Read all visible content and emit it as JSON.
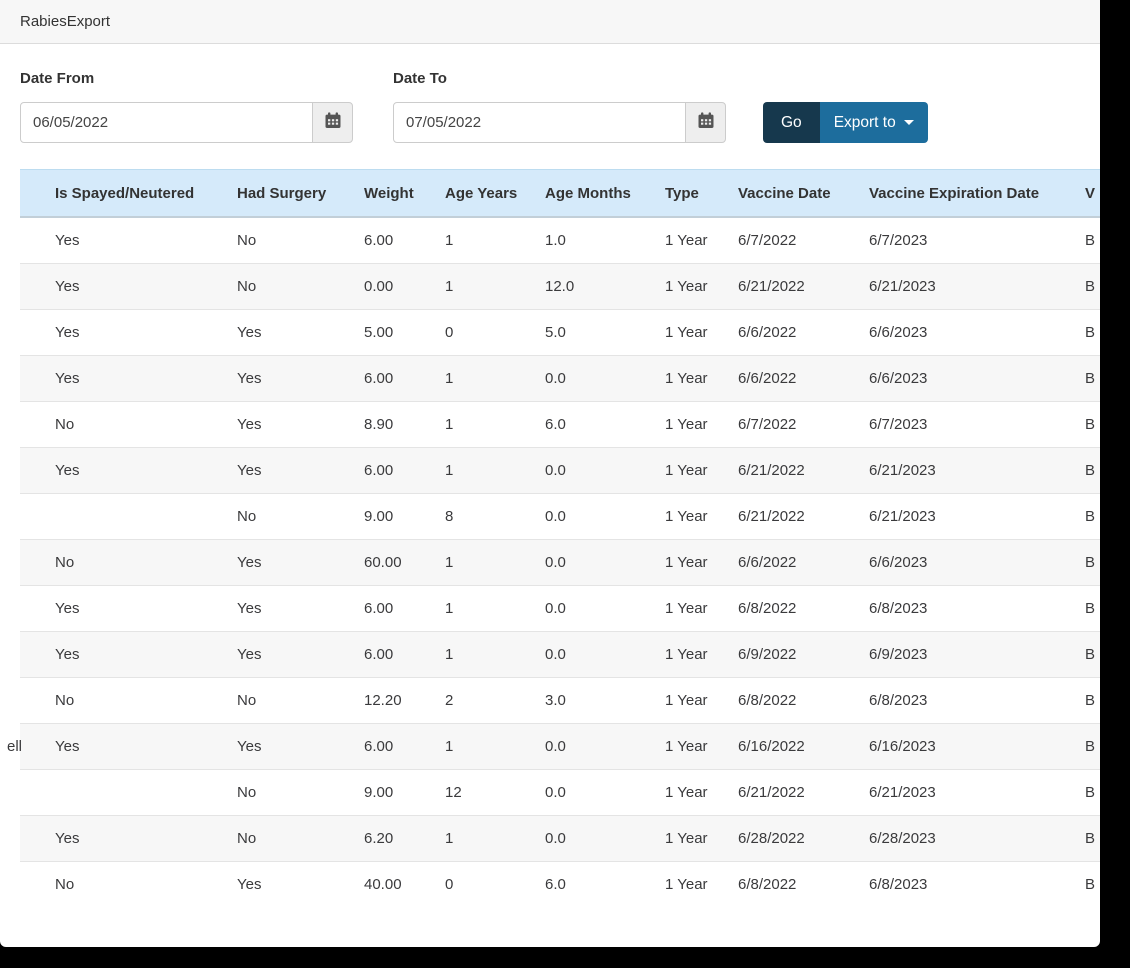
{
  "window": {
    "title": "RabiesExport"
  },
  "filters": {
    "date_from": {
      "label": "Date From",
      "value": "06/05/2022"
    },
    "date_to": {
      "label": "Date To",
      "value": "07/05/2022"
    },
    "go_label": "Go",
    "export_label": "Export to"
  },
  "icons": {
    "calendar": "calendar-icon",
    "caret": "caret-down-icon"
  },
  "table": {
    "columns": [
      "",
      "Is Spayed/Neutered",
      "Had Surgery",
      "Weight",
      "Age Years",
      "Age Months",
      "Type",
      "Vaccine Date",
      "Vaccine Expiration Date",
      "V"
    ],
    "rows": [
      [
        "",
        "Yes",
        "No",
        "6.00",
        "1",
        "1.0",
        "1 Year",
        "6/7/2022",
        "6/7/2023",
        "B"
      ],
      [
        "",
        "Yes",
        "No",
        "0.00",
        "1",
        "12.0",
        "1 Year",
        "6/21/2022",
        "6/21/2023",
        "B"
      ],
      [
        "",
        "Yes",
        "Yes",
        "5.00",
        "0",
        "5.0",
        "1 Year",
        "6/6/2022",
        "6/6/2023",
        "B"
      ],
      [
        "",
        "Yes",
        "Yes",
        "6.00",
        "1",
        "0.0",
        "1 Year",
        "6/6/2022",
        "6/6/2023",
        "B"
      ],
      [
        "",
        "No",
        "Yes",
        "8.90",
        "1",
        "6.0",
        "1 Year",
        "6/7/2022",
        "6/7/2023",
        "B"
      ],
      [
        "",
        "Yes",
        "Yes",
        "6.00",
        "1",
        "0.0",
        "1 Year",
        "6/21/2022",
        "6/21/2023",
        "B"
      ],
      [
        "",
        "",
        "No",
        "9.00",
        "8",
        "0.0",
        "1 Year",
        "6/21/2022",
        "6/21/2023",
        "B"
      ],
      [
        "",
        "No",
        "Yes",
        "60.00",
        "1",
        "0.0",
        "1 Year",
        "6/6/2022",
        "6/6/2023",
        "B"
      ],
      [
        "",
        "Yes",
        "Yes",
        "6.00",
        "1",
        "0.0",
        "1 Year",
        "6/8/2022",
        "6/8/2023",
        "B"
      ],
      [
        "",
        "Yes",
        "Yes",
        "6.00",
        "1",
        "0.0",
        "1 Year",
        "6/9/2022",
        "6/9/2023",
        "B"
      ],
      [
        "",
        "No",
        "No",
        "12.20",
        "2",
        "3.0",
        "1 Year",
        "6/8/2022",
        "6/8/2023",
        "B"
      ],
      [
        "ell",
        "Yes",
        "Yes",
        "6.00",
        "1",
        "0.0",
        "1 Year",
        "6/16/2022",
        "6/16/2023",
        "B"
      ],
      [
        "",
        "",
        "No",
        "9.00",
        "12",
        "0.0",
        "1 Year",
        "6/21/2022",
        "6/21/2023",
        "B"
      ],
      [
        "",
        "Yes",
        "No",
        "6.20",
        "1",
        "0.0",
        "1 Year",
        "6/28/2022",
        "6/28/2023",
        "B"
      ],
      [
        "",
        "No",
        "Yes",
        "40.00",
        "0",
        "6.0",
        "1 Year",
        "6/8/2022",
        "6/8/2023",
        "B"
      ]
    ]
  },
  "colors": {
    "go_bg": "#16384d",
    "export_bg": "#1d6d9d",
    "thead_bg": "#d5eafa"
  }
}
